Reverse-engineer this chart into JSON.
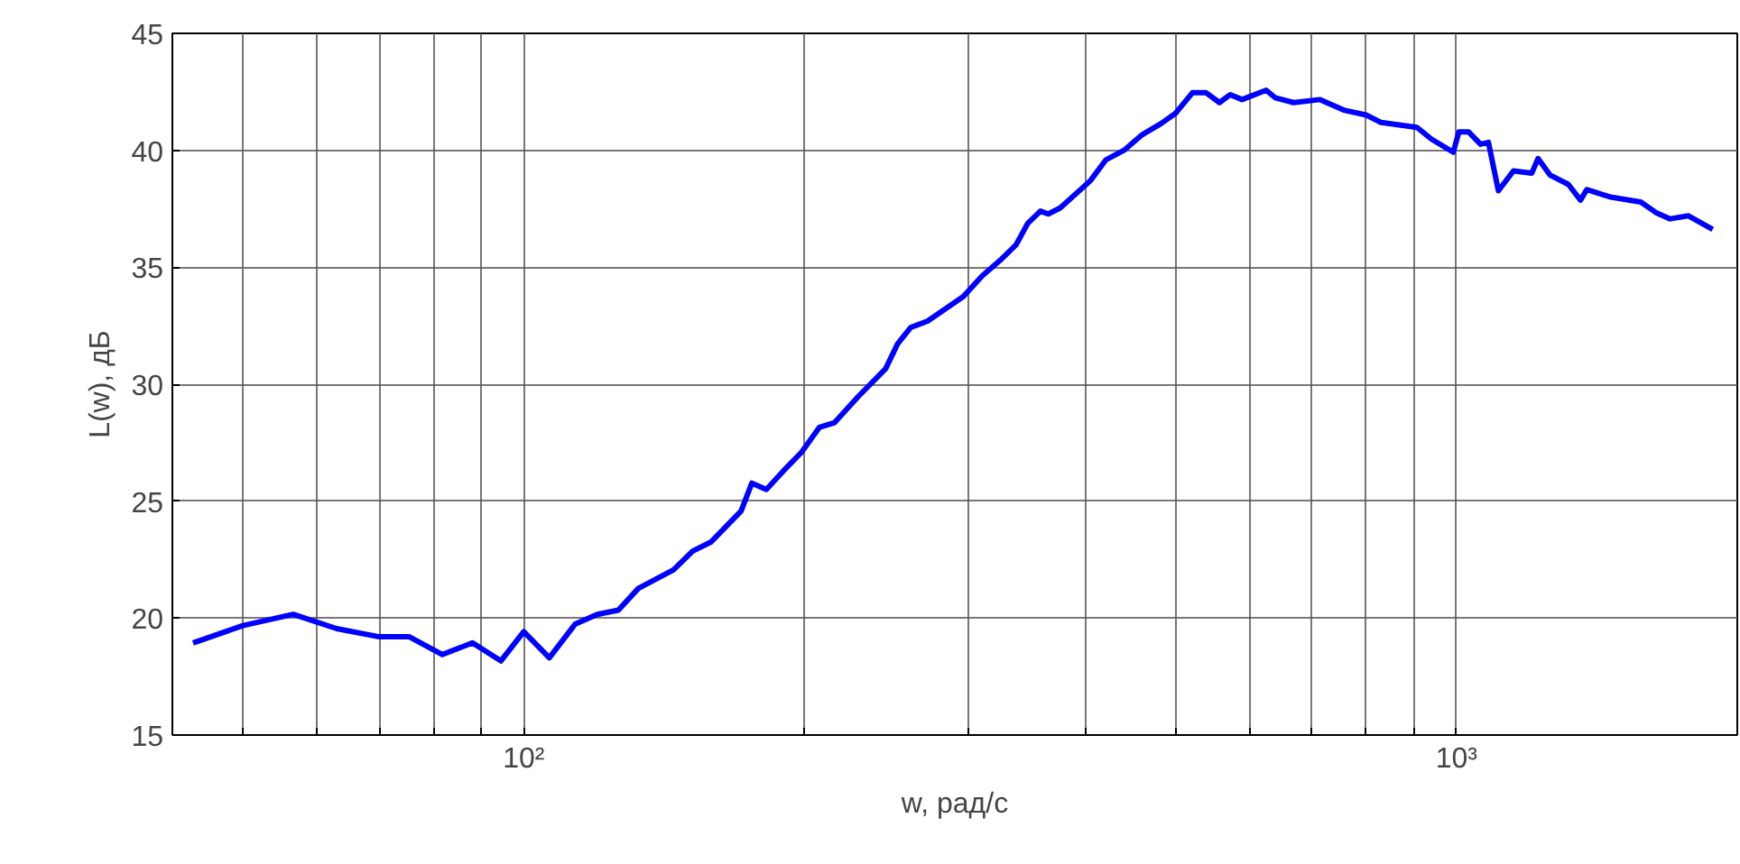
{
  "chart_data": {
    "type": "line",
    "xlabel": "w, рад/с",
    "ylabel": "L(w), дБ",
    "log": "x",
    "grid": true,
    "marker": "none",
    "line_style": "solid",
    "xlim": [
      42,
      2000
    ],
    "ylim": [
      15,
      45
    ],
    "xticks": [
      {
        "value": 50,
        "label": null
      },
      {
        "value": 60,
        "label": null
      },
      {
        "value": 70,
        "label": null
      },
      {
        "value": 80,
        "label": null
      },
      {
        "value": 90,
        "label": null
      },
      {
        "value": 100,
        "label": "10²"
      },
      {
        "value": 200,
        "label": null
      },
      {
        "value": 300,
        "label": null
      },
      {
        "value": 400,
        "label": null
      },
      {
        "value": 500,
        "label": null
      },
      {
        "value": 600,
        "label": null
      },
      {
        "value": 700,
        "label": null
      },
      {
        "value": 800,
        "label": null
      },
      {
        "value": 900,
        "label": null
      },
      {
        "value": 1000,
        "label": "10³"
      }
    ],
    "yticks": [
      15,
      20,
      25,
      30,
      35,
      40,
      45
    ],
    "x": [
      44.2,
      50,
      56.6,
      63,
      70,
      75.4,
      81.8,
      88.1,
      94.5,
      100,
      106.5,
      113.5,
      119.9,
      126.3,
      132.7,
      144.7,
      151.7,
      158.7,
      171,
      175.6,
      182,
      189.9,
      198.5,
      207.4,
      215.4,
      228.3,
      244.3,
      251.6,
      260,
      271,
      296,
      310,
      324,
      337,
      347,
      358,
      365,
      376,
      405,
      421,
      440,
      460,
      482,
      500,
      521,
      539,
      557,
      572,
      589,
      625,
      639,
      669,
      714,
      757,
      800,
      830,
      907,
      940,
      992,
      1006,
      1030,
      1061,
      1082,
      1109,
      1151,
      1204,
      1223,
      1260,
      1318,
      1358,
      1379,
      1463,
      1576,
      1636,
      1694,
      1773,
      1882
    ],
    "series": [
      {
        "color": "#0000ff",
        "values": [
          18.94,
          19.68,
          20.16,
          19.55,
          19.2,
          19.2,
          18.44,
          18.94,
          18.17,
          19.42,
          18.3,
          19.74,
          20.16,
          20.34,
          21.27,
          22.06,
          22.86,
          23.25,
          24.58,
          25.77,
          25.5,
          26.3,
          27.09,
          28.15,
          28.36,
          29.47,
          30.66,
          31.72,
          32.43,
          32.7,
          33.75,
          34.63,
          35.29,
          35.95,
          36.88,
          37.4,
          37.28,
          37.54,
          38.7,
          39.6,
          40.0,
          40.66,
          41.14,
          41.59,
          42.46,
          42.46,
          42.04,
          42.38,
          42.17,
          42.57,
          42.25,
          42.04,
          42.17,
          41.72,
          41.51,
          41.19,
          40.98,
          40.48,
          39.92,
          40.79,
          40.79,
          40.26,
          40.34,
          38.27,
          39.12,
          39.02,
          39.65,
          38.94,
          38.54,
          37.87,
          38.32,
          38.0,
          37.79,
          37.34,
          37.07,
          37.2,
          36.62
        ]
      }
    ]
  }
}
